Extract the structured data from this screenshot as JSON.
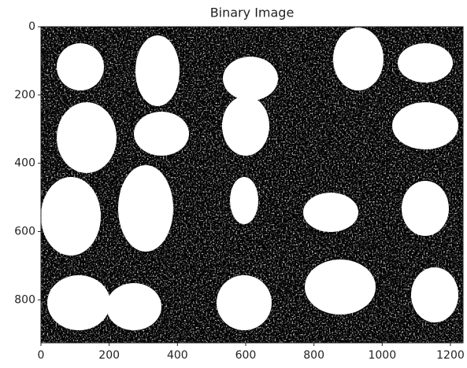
{
  "chart_data": {
    "type": "image",
    "title": "Binary Image",
    "xlim": [
      0,
      1237
    ],
    "ylim": [
      926,
      0
    ],
    "xticks": [
      0,
      200,
      400,
      600,
      800,
      1000,
      1200
    ],
    "yticks": [
      0,
      200,
      400,
      600,
      800
    ]
  }
}
